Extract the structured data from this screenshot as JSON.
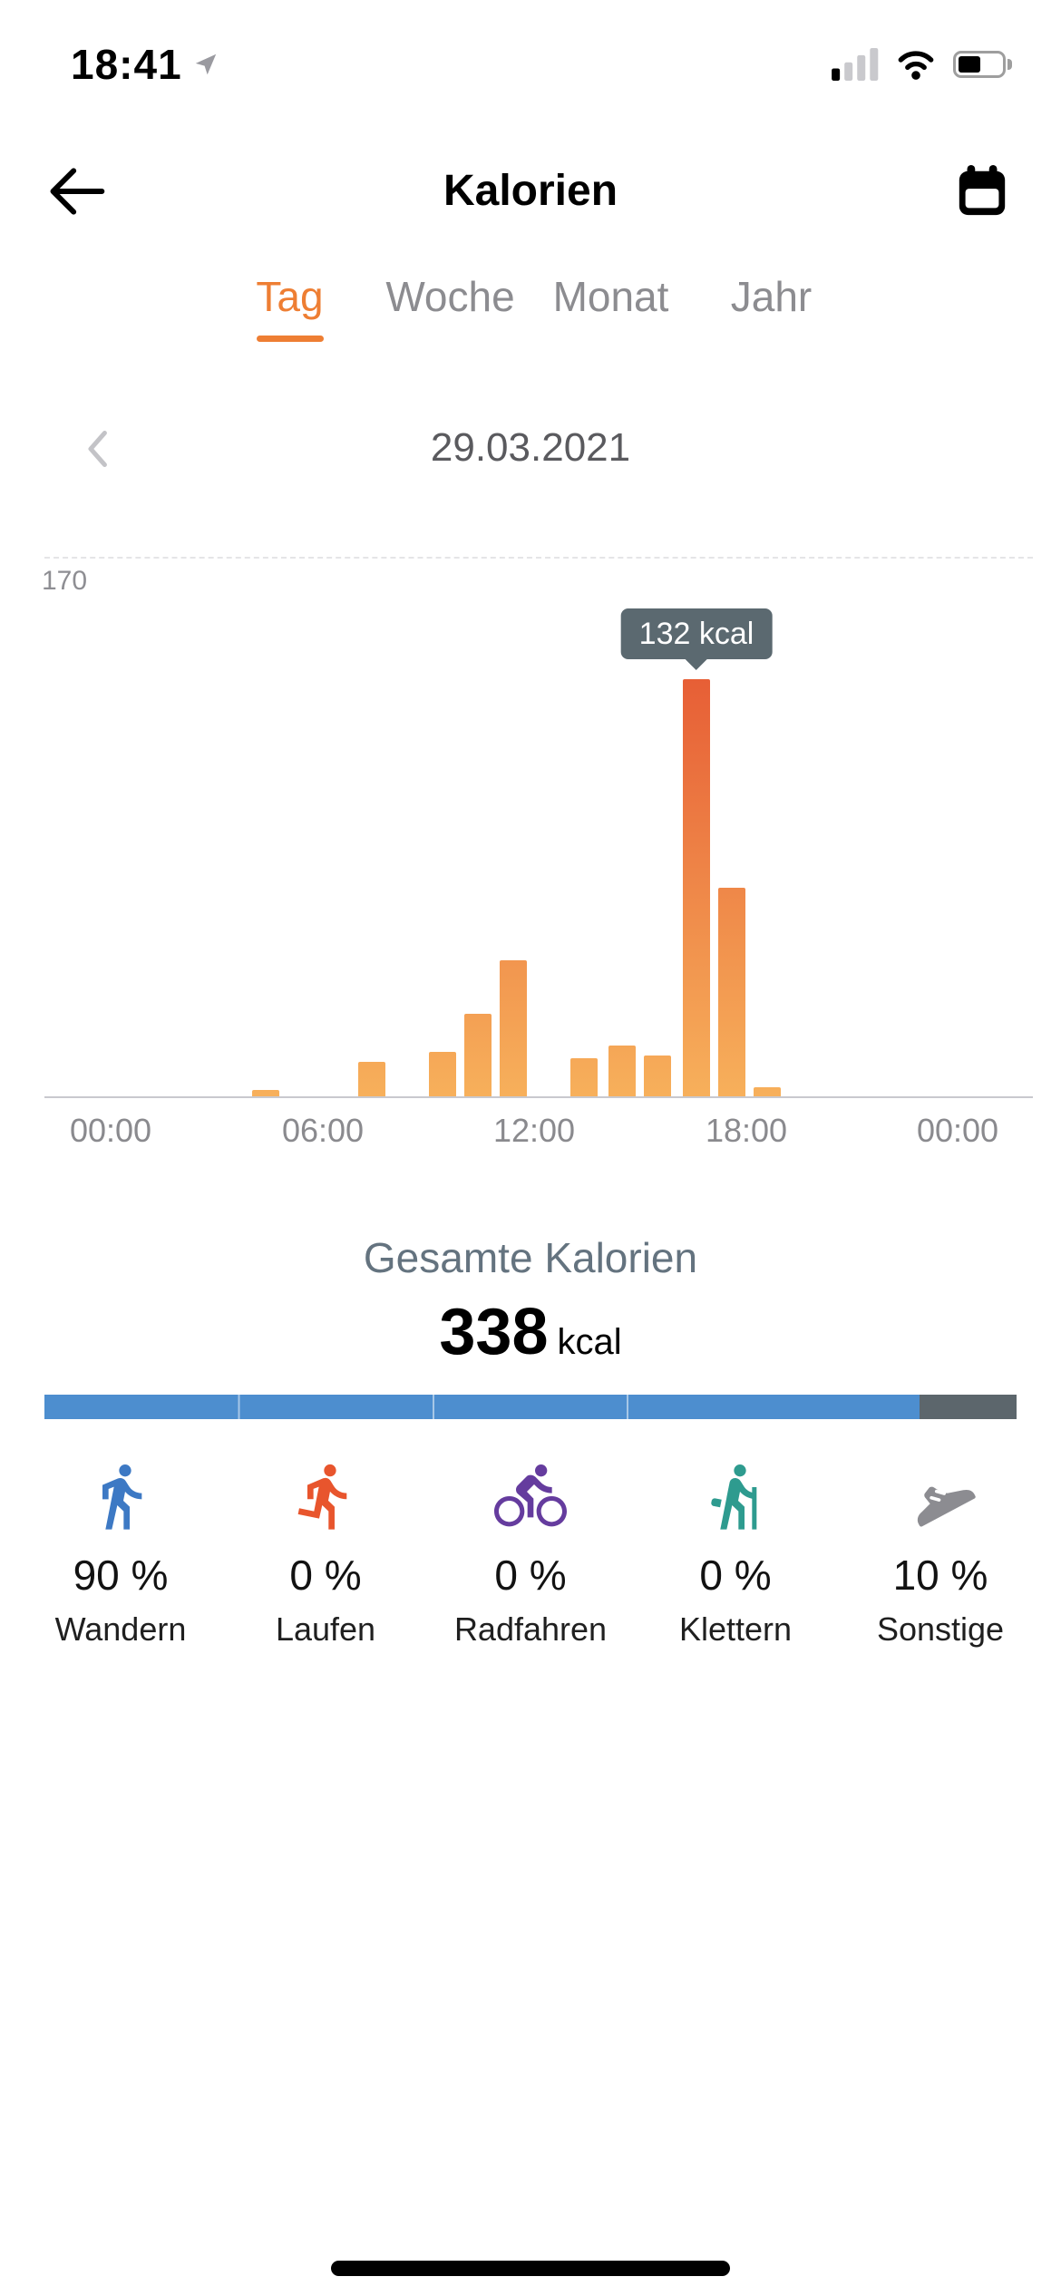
{
  "status_bar": {
    "time": "18:41"
  },
  "header": {
    "title": "Kalorien"
  },
  "tabs": [
    {
      "label": "Tag",
      "active": true
    },
    {
      "label": "Woche",
      "active": false
    },
    {
      "label": "Monat",
      "active": false
    },
    {
      "label": "Jahr",
      "active": false
    }
  ],
  "date_nav": {
    "date": "29.03.2021"
  },
  "chart_data": {
    "type": "bar",
    "unit": "kcal",
    "ylim": [
      0,
      170
    ],
    "y_gridline_label": "170",
    "x_tick_hours": [
      0,
      6,
      12,
      18,
      24
    ],
    "x_tick_labels": [
      "00:00",
      "06:00",
      "12:00",
      "18:00",
      "00:00"
    ],
    "grid": "single dashed gridline at y=170",
    "legend": "none",
    "bars": [
      {
        "hour": 4.4,
        "value": 2
      },
      {
        "hour": 7.4,
        "value": 11
      },
      {
        "hour": 9.4,
        "value": 14
      },
      {
        "hour": 10.4,
        "value": 26
      },
      {
        "hour": 11.4,
        "value": 43
      },
      {
        "hour": 13.4,
        "value": 12
      },
      {
        "hour": 14.5,
        "value": 16
      },
      {
        "hour": 15.5,
        "value": 13
      },
      {
        "hour": 16.6,
        "value": 132
      },
      {
        "hour": 17.6,
        "value": 66
      },
      {
        "hour": 18.6,
        "value": 3
      }
    ],
    "tooltip": {
      "text": "132 kcal",
      "bar_index": 8
    }
  },
  "summary": {
    "label": "Gesamte Kalorien",
    "value": "338",
    "unit": "kcal"
  },
  "distribution": {
    "bar_segments": [
      {
        "name": "Wandern",
        "percent": 90,
        "color": "#4D8ECF"
      },
      {
        "name": "Laufen",
        "percent": 0,
        "color": "#E8552D"
      },
      {
        "name": "Radfahren",
        "percent": 0,
        "color": "#653C9E"
      },
      {
        "name": "Klettern",
        "percent": 0,
        "color": "#2E9B8F"
      },
      {
        "name": "Sonstige",
        "percent": 10,
        "color": "#5C666C"
      }
    ],
    "items": [
      {
        "icon": "walking-icon",
        "percent": "90 %",
        "label": "Wandern",
        "color": "#3D79C4"
      },
      {
        "icon": "running-icon",
        "percent": "0 %",
        "label": "Laufen",
        "color": "#E8552D"
      },
      {
        "icon": "cycling-icon",
        "percent": "0 %",
        "label": "Radfahren",
        "color": "#653C9E"
      },
      {
        "icon": "climbing-icon",
        "percent": "0 %",
        "label": "Klettern",
        "color": "#2E9B8F"
      },
      {
        "icon": "shoe-icon",
        "percent": "10 %",
        "label": "Sonstige",
        "color": "#8C8C91"
      }
    ]
  },
  "colors": {
    "accent": "#EE7E33",
    "bar_gradient_top": "#E2472B",
    "bar_gradient_bottom": "#F7B05B",
    "tooltip_bg": "#5B6970",
    "progress_blue": "#4D8ECF",
    "progress_gray": "#5C666C",
    "total_label": "#64737F"
  }
}
